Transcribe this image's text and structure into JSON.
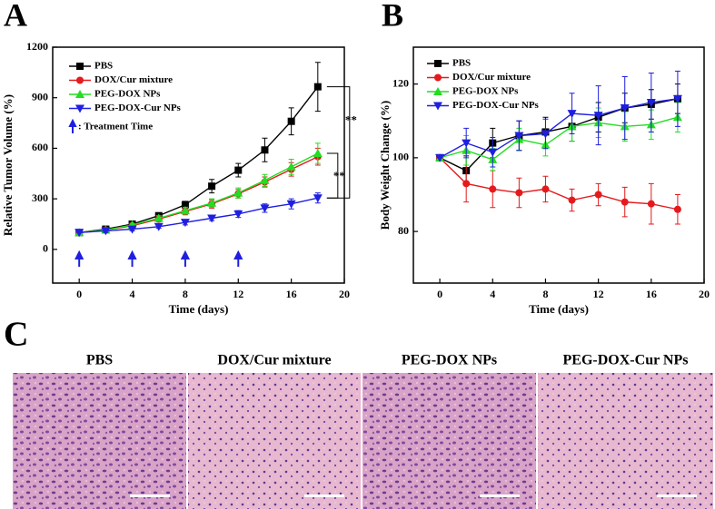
{
  "chart_data": [
    {
      "type": "line",
      "panel": "A",
      "xlabel": "Time (days)",
      "ylabel": "Relative Tumor Volume (%)",
      "x": [
        0,
        2,
        4,
        6,
        8,
        10,
        12,
        14,
        16,
        18
      ],
      "xlim": [
        -2,
        20
      ],
      "xticks": [
        0,
        4,
        8,
        12,
        16,
        20
      ],
      "ylim": [
        -200,
        1200
      ],
      "yticks": [
        0,
        300,
        600,
        900,
        1200
      ],
      "series": [
        {
          "name": "PBS",
          "color": "#000000",
          "marker": "square",
          "values": [
            100,
            120,
            150,
            200,
            265,
            375,
            470,
            590,
            760,
            965
          ],
          "errors": [
            0,
            10,
            10,
            15,
            20,
            40,
            40,
            70,
            80,
            145
          ]
        },
        {
          "name": "DOX/Cur mixture",
          "color": "#e41a1c",
          "marker": "circle",
          "values": [
            100,
            115,
            140,
            180,
            225,
            270,
            330,
            400,
            475,
            550
          ],
          "errors": [
            0,
            10,
            10,
            15,
            20,
            25,
            25,
            30,
            40,
            50
          ]
        },
        {
          "name": "PEG-DOX NPs",
          "color": "#22dd22",
          "marker": "triangle-up",
          "values": [
            100,
            115,
            145,
            185,
            230,
            275,
            335,
            410,
            490,
            570
          ],
          "errors": [
            0,
            10,
            10,
            15,
            20,
            25,
            30,
            35,
            45,
            60
          ]
        },
        {
          "name": "PEG-DOX-Cur NPs",
          "color": "#1f1fe0",
          "marker": "triangle-down",
          "values": [
            100,
            110,
            120,
            135,
            160,
            185,
            210,
            245,
            270,
            305
          ],
          "errors": [
            0,
            10,
            10,
            10,
            15,
            15,
            20,
            25,
            30,
            30
          ]
        }
      ],
      "treatment_days": [
        0,
        4,
        8,
        12
      ],
      "treatment_note": ": Treatment Time",
      "annotations": [
        "**",
        "**"
      ]
    },
    {
      "type": "line",
      "panel": "B",
      "xlabel": "Time (days)",
      "ylabel": "Body Weight Change (%)",
      "x": [
        0,
        2,
        4,
        6,
        8,
        10,
        12,
        14,
        16,
        18
      ],
      "xlim": [
        -2,
        20
      ],
      "xticks": [
        0,
        4,
        8,
        12,
        16,
        20
      ],
      "ylim": [
        66,
        130
      ],
      "yticks": [
        80,
        100,
        120
      ],
      "series": [
        {
          "name": "PBS",
          "color": "#000000",
          "marker": "square",
          "values": [
            100,
            96.5,
            104,
            106,
            107,
            108.5,
            111,
            113.5,
            114.5,
            116
          ],
          "errors": [
            0,
            4,
            4,
            4,
            4,
            4,
            4,
            4,
            4,
            4
          ]
        },
        {
          "name": "DOX/Cur mixture",
          "color": "#e41a1c",
          "marker": "circle",
          "values": [
            100,
            93,
            91.5,
            90.5,
            91.5,
            88.5,
            90,
            88,
            87.5,
            86
          ],
          "errors": [
            0,
            5,
            5,
            4,
            3.5,
            3,
            3,
            4,
            5.5,
            4
          ]
        },
        {
          "name": "PEG-DOX NPs",
          "color": "#22dd22",
          "marker": "triangle-up",
          "values": [
            100,
            102,
            99.5,
            105,
            103.5,
            108.5,
            109.5,
            108.5,
            109,
            111
          ],
          "errors": [
            0,
            4,
            3,
            3,
            3,
            4,
            4,
            4,
            4,
            4
          ]
        },
        {
          "name": "PEG-DOX-Cur NPs",
          "color": "#1f1fe0",
          "marker": "triangle-down",
          "values": [
            100,
            104,
            101.5,
            106,
            106.5,
            112,
            111.5,
            113.5,
            115,
            116
          ],
          "errors": [
            0,
            4,
            4,
            4,
            4,
            5.5,
            8,
            8.5,
            8,
            7.5
          ]
        }
      ]
    }
  ],
  "histology": {
    "panel": "C",
    "titles": [
      "PBS",
      "DOX/Cur mixture",
      "PEG-DOX NPs",
      "PEG-DOX-Cur NPs"
    ]
  }
}
